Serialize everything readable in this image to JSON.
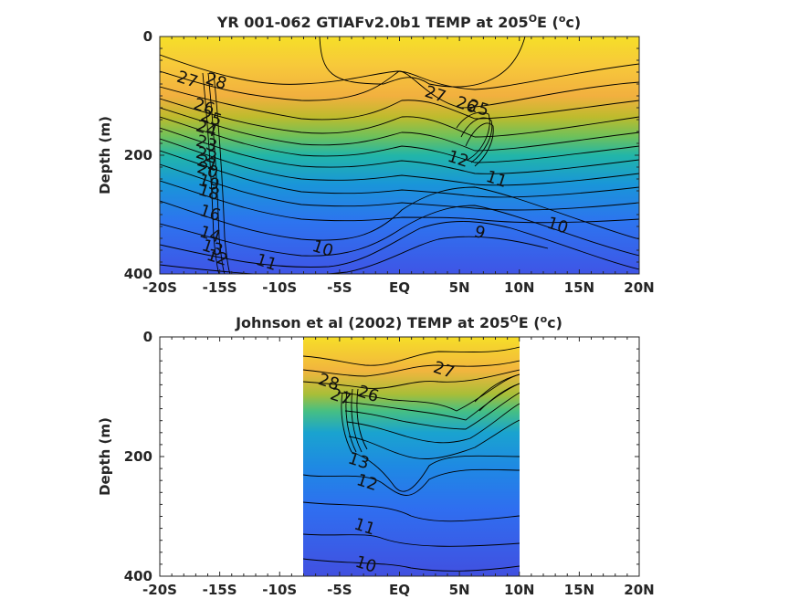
{
  "chart_data": [
    {
      "type": "contour",
      "title_main": "YR 001-062 GTIAFv2.0b1 TEMP at 205",
      "title_deg": "O",
      "title_tail": "E (",
      "title_unit_sup": "o",
      "title_close": "c)",
      "ylabel": "Depth (m)",
      "xlabel": "",
      "x_ticks": [
        "-20S",
        "-15S",
        "-10S",
        "-5S",
        "EQ",
        "5N",
        "10N",
        "15N",
        "20N"
      ],
      "y_ticks": [
        "0",
        "200",
        "400"
      ],
      "xlim": [
        -20,
        20
      ],
      "ylim": [
        0,
        400
      ],
      "data_xlim": [
        -20,
        20
      ],
      "colormap": "parula",
      "contour_labels": [
        {
          "text": "28",
          "x": -15.3,
          "y": 75
        },
        {
          "text": "27",
          "x": -17.7,
          "y": 72
        },
        {
          "text": "26",
          "x": -16.3,
          "y": 118
        },
        {
          "text": "25",
          "x": -15.7,
          "y": 137
        },
        {
          "text": "24",
          "x": -16.1,
          "y": 155
        },
        {
          "text": "23",
          "x": -16.1,
          "y": 180
        },
        {
          "text": "22",
          "x": -16.1,
          "y": 200
        },
        {
          "text": "21",
          "x": -16.0,
          "y": 213
        },
        {
          "text": "20",
          "x": -16.0,
          "y": 225
        },
        {
          "text": "19",
          "x": -15.9,
          "y": 246
        },
        {
          "text": "18",
          "x": -15.9,
          "y": 262
        },
        {
          "text": "16",
          "x": -15.8,
          "y": 297
        },
        {
          "text": "14",
          "x": -15.8,
          "y": 333
        },
        {
          "text": "13",
          "x": -15.6,
          "y": 356
        },
        {
          "text": "12",
          "x": -15.2,
          "y": 372
        },
        {
          "text": "11",
          "x": -11.1,
          "y": 380
        },
        {
          "text": "10",
          "x": -6.4,
          "y": 357
        },
        {
          "text": "9",
          "x": 6.7,
          "y": 330
        },
        {
          "text": "10",
          "x": 13.2,
          "y": 318
        },
        {
          "text": "11",
          "x": 8.1,
          "y": 240
        },
        {
          "text": "12",
          "x": 4.9,
          "y": 206
        },
        {
          "text": "27",
          "x": 3.0,
          "y": 97
        },
        {
          "text": "26",
          "x": 5.6,
          "y": 115
        },
        {
          "text": "25",
          "x": 6.6,
          "y": 120
        }
      ]
    },
    {
      "type": "contour",
      "title_main": "Johnson et al (2002) TEMP at 205",
      "title_deg": "O",
      "title_tail": "E (",
      "title_unit_sup": "o",
      "title_close": "c)",
      "ylabel": "Depth (m)",
      "xlabel": "",
      "x_ticks": [
        "-20S",
        "-15S",
        "-10S",
        "-5S",
        "EQ",
        "5N",
        "10N",
        "15N",
        "20N"
      ],
      "y_ticks": [
        "0",
        "200",
        "400"
      ],
      "xlim": [
        -20,
        20
      ],
      "ylim": [
        0,
        400
      ],
      "data_xlim": [
        -8,
        10
      ],
      "colormap": "parula",
      "contour_labels": [
        {
          "text": "28",
          "x": -5.9,
          "y": 75
        },
        {
          "text": "27",
          "x": -4.9,
          "y": 100
        },
        {
          "text": "26",
          "x": -2.6,
          "y": 95
        },
        {
          "text": "27",
          "x": 3.7,
          "y": 55
        },
        {
          "text": "13",
          "x": -3.4,
          "y": 207
        },
        {
          "text": "12",
          "x": -2.7,
          "y": 243
        },
        {
          "text": "11",
          "x": -2.9,
          "y": 317
        },
        {
          "text": "10",
          "x": -2.8,
          "y": 380
        }
      ]
    }
  ]
}
